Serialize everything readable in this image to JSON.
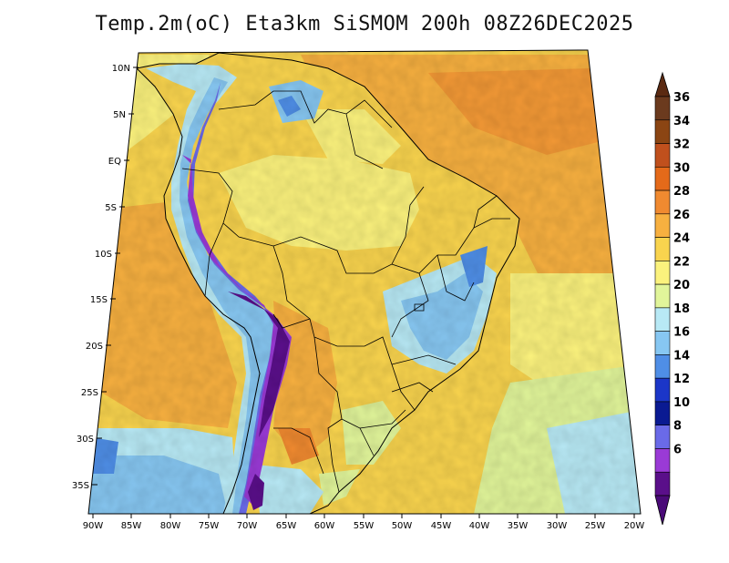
{
  "title": "Temp.2m(oC) Eta3km SiSMOM 200h 08Z26DEC2025",
  "lat_labels": [
    "10N",
    "5N",
    "EQ",
    "5S",
    "10S",
    "15S",
    "20S",
    "25S",
    "30S",
    "35S"
  ],
  "lon_labels": [
    "90W",
    "85W",
    "80W",
    "75W",
    "70W",
    "65W",
    "60W",
    "55W",
    "50W",
    "45W",
    "40W",
    "35W",
    "30W",
    "25W",
    "20W"
  ],
  "colorbar": {
    "levels": [
      "36",
      "34",
      "32",
      "30",
      "28",
      "26",
      "24",
      "22",
      "20",
      "18",
      "16",
      "14",
      "12",
      "10",
      "8",
      "6"
    ],
    "colors": [
      "#6b3a1e",
      "#8b4513",
      "#c0501d",
      "#e46a1a",
      "#f08a30",
      "#f7b040",
      "#f9d44e",
      "#fbf27d",
      "#e1f59a",
      "#b8e9f5",
      "#87c7f2",
      "#4f8ee6",
      "#1b36c8",
      "#0a1a92",
      "#6a6ae8",
      "#9a3ad6",
      "#5a0f8a"
    ],
    "top_arrow_color": "#5b2a12",
    "bottom_arrow_color": "#4a0a78"
  },
  "colors": {
    "ocean_warm": "#f7b040",
    "ocean_hot": "#f08a30",
    "ocean_mild": "#f9d44e",
    "ocean_cool": "#fbf27d",
    "ocean_cold": "#87c7f2",
    "andes_cold": "#5a0f8a",
    "highland_cool": "#b8e9f5"
  }
}
